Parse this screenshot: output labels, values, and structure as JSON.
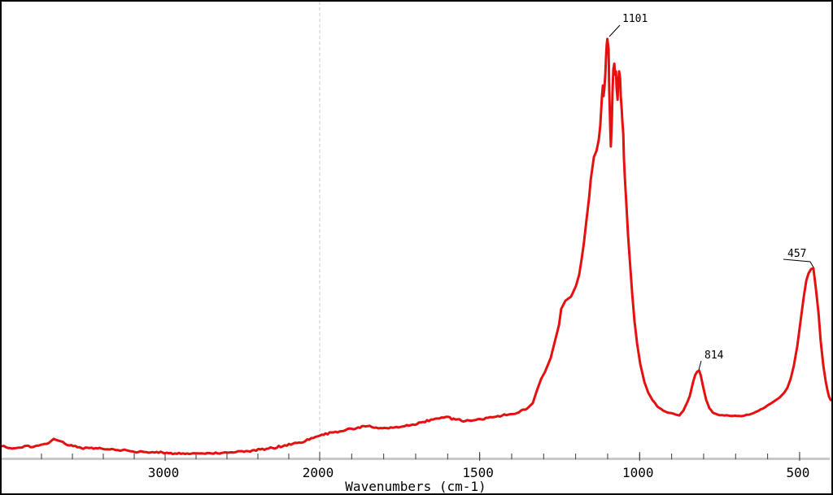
{
  "window": {
    "background": "#ffffff",
    "border_color": "#000000"
  },
  "chart_data": {
    "type": "line",
    "title": "",
    "xlabel": "Wavenumbers (cm-1)",
    "ylabel": "",
    "legend": "none",
    "grid": "single dashed vertical gridline at 2000",
    "x_axis": {
      "unit": "cm-1",
      "direction": "decreasing-left-to-right",
      "range": [
        4060,
        403
      ],
      "labeled_ticks": [
        3000,
        2000,
        1500,
        1000,
        500
      ],
      "minor_tick_step_below_2000": 100,
      "minor_tick_step_above_2000": 200,
      "compression_factor_above_2000": 2,
      "gridline_at": 2000,
      "axis_bar_color": "#c9c9c9",
      "tick_color": "#3a3a3a",
      "label_color": "#000000",
      "gridline_color": "#c8c8c8"
    },
    "y_axis": {
      "visible": false,
      "range": [
        0,
        100
      ],
      "note": "intensity, arbitrary units (no visible y axis)"
    },
    "series": [
      {
        "name": "spectrum",
        "color": "#e51010",
        "line_width": 3,
        "points": [
          [
            4058,
            2.5
          ],
          [
            4016,
            2.1
          ],
          [
            3963,
            2.1
          ],
          [
            3911,
            2.5
          ],
          [
            3858,
            2.3
          ],
          [
            3805,
            2.8
          ],
          [
            3753,
            3.2
          ],
          [
            3721,
            4.1
          ],
          [
            3689,
            3.7
          ],
          [
            3647,
            3.0
          ],
          [
            3595,
            2.5
          ],
          [
            3542,
            2.1
          ],
          [
            3489,
            2.1
          ],
          [
            3437,
            2.0
          ],
          [
            3384,
            1.8
          ],
          [
            3332,
            1.8
          ],
          [
            3279,
            1.6
          ],
          [
            3226,
            1.4
          ],
          [
            3174,
            1.2
          ],
          [
            3121,
            1.2
          ],
          [
            3068,
            1.1
          ],
          [
            3016,
            1.1
          ],
          [
            2937,
            0.9
          ],
          [
            2858,
            0.9
          ],
          [
            2779,
            0.9
          ],
          [
            2700,
            0.9
          ],
          [
            2621,
            1.1
          ],
          [
            2542,
            1.2
          ],
          [
            2463,
            1.4
          ],
          [
            2384,
            1.8
          ],
          [
            2305,
            2.1
          ],
          [
            2226,
            2.7
          ],
          [
            2147,
            3.2
          ],
          [
            2068,
            3.9
          ],
          [
            2000,
            4.8
          ],
          [
            1957,
            5.5
          ],
          [
            1919,
            6.0
          ],
          [
            1880,
            6.6
          ],
          [
            1850,
            6.9
          ],
          [
            1817,
            6.4
          ],
          [
            1784,
            6.4
          ],
          [
            1748,
            6.7
          ],
          [
            1715,
            7.1
          ],
          [
            1677,
            7.8
          ],
          [
            1639,
            8.5
          ],
          [
            1606,
            8.9
          ],
          [
            1575,
            8.3
          ],
          [
            1545,
            8.0
          ],
          [
            1512,
            8.2
          ],
          [
            1474,
            8.7
          ],
          [
            1443,
            9.1
          ],
          [
            1410,
            9.4
          ],
          [
            1377,
            9.9
          ],
          [
            1352,
            10.7
          ],
          [
            1334,
            11.9
          ],
          [
            1321,
            14.7
          ],
          [
            1308,
            17.2
          ],
          [
            1296,
            18.7
          ],
          [
            1278,
            21.8
          ],
          [
            1265,
            25.4
          ],
          [
            1252,
            29.0
          ],
          [
            1245,
            32.5
          ],
          [
            1232,
            34.3
          ],
          [
            1214,
            35.2
          ],
          [
            1199,
            37.5
          ],
          [
            1189,
            40.0
          ],
          [
            1181,
            43.5
          ],
          [
            1174,
            47.1
          ],
          [
            1166,
            52.0
          ],
          [
            1158,
            56.8
          ],
          [
            1153,
            60.6
          ],
          [
            1148,
            63.2
          ],
          [
            1143,
            65.7
          ],
          [
            1135,
            67.0
          ],
          [
            1128,
            69.4
          ],
          [
            1123,
            72.5
          ],
          [
            1118,
            78.7
          ],
          [
            1115,
            81.3
          ],
          [
            1113,
            79.0
          ],
          [
            1110,
            80.8
          ],
          [
            1107,
            84.0
          ],
          [
            1105,
            87.6
          ],
          [
            1103,
            90.2
          ],
          [
            1101,
            91.5
          ],
          [
            1097,
            89.3
          ],
          [
            1095,
            80.5
          ],
          [
            1092,
            72.5
          ],
          [
            1090,
            68.0
          ],
          [
            1087,
            73.4
          ],
          [
            1085,
            79.6
          ],
          [
            1082,
            84.9
          ],
          [
            1079,
            86.1
          ],
          [
            1077,
            83.7
          ],
          [
            1074,
            84.4
          ],
          [
            1072,
            80.8
          ],
          [
            1069,
            78.2
          ],
          [
            1067,
            81.7
          ],
          [
            1064,
            84.4
          ],
          [
            1061,
            82.9
          ],
          [
            1059,
            79.0
          ],
          [
            1056,
            76.0
          ],
          [
            1054,
            73.4
          ],
          [
            1051,
            70.7
          ],
          [
            1049,
            65.4
          ],
          [
            1046,
            60.9
          ],
          [
            1041,
            54.7
          ],
          [
            1036,
            48.5
          ],
          [
            1029,
            41.4
          ],
          [
            1023,
            35.5
          ],
          [
            1016,
            29.8
          ],
          [
            1008,
            24.9
          ],
          [
            998,
            20.4
          ],
          [
            985,
            16.5
          ],
          [
            973,
            14.2
          ],
          [
            960,
            12.6
          ],
          [
            945,
            11.2
          ],
          [
            927,
            10.3
          ],
          [
            909,
            9.8
          ],
          [
            894,
            9.6
          ],
          [
            876,
            9.2
          ],
          [
            863,
            10.3
          ],
          [
            851,
            12.1
          ],
          [
            843,
            13.5
          ],
          [
            833,
            16.5
          ],
          [
            826,
            18.1
          ],
          [
            820,
            18.8
          ],
          [
            814,
            19.0
          ],
          [
            809,
            18.0
          ],
          [
            802,
            15.6
          ],
          [
            792,
            12.6
          ],
          [
            782,
            10.8
          ],
          [
            772,
            9.9
          ],
          [
            756,
            9.4
          ],
          [
            736,
            9.2
          ],
          [
            716,
            9.1
          ],
          [
            695,
            9.1
          ],
          [
            672,
            9.2
          ],
          [
            650,
            9.6
          ],
          [
            627,
            10.3
          ],
          [
            604,
            11.2
          ],
          [
            584,
            12.1
          ],
          [
            563,
            13.1
          ],
          [
            548,
            14.2
          ],
          [
            538,
            15.3
          ],
          [
            528,
            17.2
          ],
          [
            518,
            20.1
          ],
          [
            507,
            24.5
          ],
          [
            497,
            29.8
          ],
          [
            487,
            35.2
          ],
          [
            479,
            38.7
          ],
          [
            472,
            40.3
          ],
          [
            464,
            41.2
          ],
          [
            457,
            41.4
          ],
          [
            449,
            36.9
          ],
          [
            441,
            31.6
          ],
          [
            434,
            25.4
          ],
          [
            426,
            20.1
          ],
          [
            418,
            16.5
          ],
          [
            413,
            14.7
          ],
          [
            408,
            13.3
          ],
          [
            403,
            12.6
          ]
        ]
      }
    ],
    "annotations": [
      {
        "label": "1101",
        "wavenumber": 1101,
        "apex_intensity": 91.5
      },
      {
        "label": "814",
        "wavenumber": 814,
        "apex_intensity": 19.0
      },
      {
        "label": "457",
        "wavenumber": 457,
        "apex_intensity": 41.4
      }
    ]
  }
}
